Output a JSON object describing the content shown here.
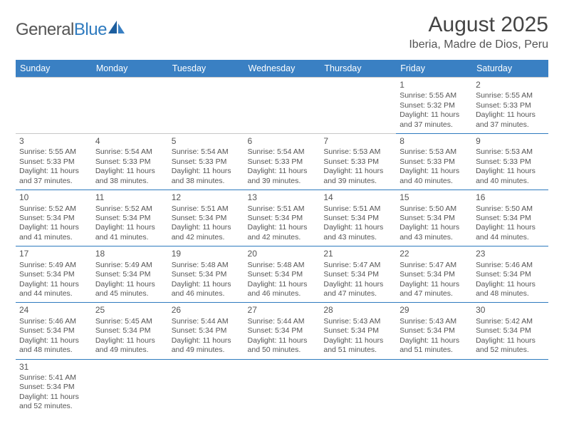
{
  "logo": {
    "text1": "General",
    "text2": "Blue"
  },
  "title": "August 2025",
  "location": "Iberia, Madre de Dios, Peru",
  "dayHeaders": [
    "Sunday",
    "Monday",
    "Tuesday",
    "Wednesday",
    "Thursday",
    "Friday",
    "Saturday"
  ],
  "colors": {
    "headerBg": "#3a80c3",
    "rowBorder": "#2f7bbf",
    "cellTopBorder": "#c8c8c8",
    "text": "#555"
  },
  "weeks": [
    [
      null,
      null,
      null,
      null,
      null,
      {
        "n": "1",
        "r": "Sunrise: 5:55 AM",
        "s": "Sunset: 5:32 PM",
        "d1": "Daylight: 11 hours",
        "d2": "and 37 minutes."
      },
      {
        "n": "2",
        "r": "Sunrise: 5:55 AM",
        "s": "Sunset: 5:33 PM",
        "d1": "Daylight: 11 hours",
        "d2": "and 37 minutes."
      }
    ],
    [
      {
        "n": "3",
        "r": "Sunrise: 5:55 AM",
        "s": "Sunset: 5:33 PM",
        "d1": "Daylight: 11 hours",
        "d2": "and 37 minutes."
      },
      {
        "n": "4",
        "r": "Sunrise: 5:54 AM",
        "s": "Sunset: 5:33 PM",
        "d1": "Daylight: 11 hours",
        "d2": "and 38 minutes."
      },
      {
        "n": "5",
        "r": "Sunrise: 5:54 AM",
        "s": "Sunset: 5:33 PM",
        "d1": "Daylight: 11 hours",
        "d2": "and 38 minutes."
      },
      {
        "n": "6",
        "r": "Sunrise: 5:54 AM",
        "s": "Sunset: 5:33 PM",
        "d1": "Daylight: 11 hours",
        "d2": "and 39 minutes."
      },
      {
        "n": "7",
        "r": "Sunrise: 5:53 AM",
        "s": "Sunset: 5:33 PM",
        "d1": "Daylight: 11 hours",
        "d2": "and 39 minutes."
      },
      {
        "n": "8",
        "r": "Sunrise: 5:53 AM",
        "s": "Sunset: 5:33 PM",
        "d1": "Daylight: 11 hours",
        "d2": "and 40 minutes."
      },
      {
        "n": "9",
        "r": "Sunrise: 5:53 AM",
        "s": "Sunset: 5:33 PM",
        "d1": "Daylight: 11 hours",
        "d2": "and 40 minutes."
      }
    ],
    [
      {
        "n": "10",
        "r": "Sunrise: 5:52 AM",
        "s": "Sunset: 5:34 PM",
        "d1": "Daylight: 11 hours",
        "d2": "and 41 minutes."
      },
      {
        "n": "11",
        "r": "Sunrise: 5:52 AM",
        "s": "Sunset: 5:34 PM",
        "d1": "Daylight: 11 hours",
        "d2": "and 41 minutes."
      },
      {
        "n": "12",
        "r": "Sunrise: 5:51 AM",
        "s": "Sunset: 5:34 PM",
        "d1": "Daylight: 11 hours",
        "d2": "and 42 minutes."
      },
      {
        "n": "13",
        "r": "Sunrise: 5:51 AM",
        "s": "Sunset: 5:34 PM",
        "d1": "Daylight: 11 hours",
        "d2": "and 42 minutes."
      },
      {
        "n": "14",
        "r": "Sunrise: 5:51 AM",
        "s": "Sunset: 5:34 PM",
        "d1": "Daylight: 11 hours",
        "d2": "and 43 minutes."
      },
      {
        "n": "15",
        "r": "Sunrise: 5:50 AM",
        "s": "Sunset: 5:34 PM",
        "d1": "Daylight: 11 hours",
        "d2": "and 43 minutes."
      },
      {
        "n": "16",
        "r": "Sunrise: 5:50 AM",
        "s": "Sunset: 5:34 PM",
        "d1": "Daylight: 11 hours",
        "d2": "and 44 minutes."
      }
    ],
    [
      {
        "n": "17",
        "r": "Sunrise: 5:49 AM",
        "s": "Sunset: 5:34 PM",
        "d1": "Daylight: 11 hours",
        "d2": "and 44 minutes."
      },
      {
        "n": "18",
        "r": "Sunrise: 5:49 AM",
        "s": "Sunset: 5:34 PM",
        "d1": "Daylight: 11 hours",
        "d2": "and 45 minutes."
      },
      {
        "n": "19",
        "r": "Sunrise: 5:48 AM",
        "s": "Sunset: 5:34 PM",
        "d1": "Daylight: 11 hours",
        "d2": "and 46 minutes."
      },
      {
        "n": "20",
        "r": "Sunrise: 5:48 AM",
        "s": "Sunset: 5:34 PM",
        "d1": "Daylight: 11 hours",
        "d2": "and 46 minutes."
      },
      {
        "n": "21",
        "r": "Sunrise: 5:47 AM",
        "s": "Sunset: 5:34 PM",
        "d1": "Daylight: 11 hours",
        "d2": "and 47 minutes."
      },
      {
        "n": "22",
        "r": "Sunrise: 5:47 AM",
        "s": "Sunset: 5:34 PM",
        "d1": "Daylight: 11 hours",
        "d2": "and 47 minutes."
      },
      {
        "n": "23",
        "r": "Sunrise: 5:46 AM",
        "s": "Sunset: 5:34 PM",
        "d1": "Daylight: 11 hours",
        "d2": "and 48 minutes."
      }
    ],
    [
      {
        "n": "24",
        "r": "Sunrise: 5:46 AM",
        "s": "Sunset: 5:34 PM",
        "d1": "Daylight: 11 hours",
        "d2": "and 48 minutes."
      },
      {
        "n": "25",
        "r": "Sunrise: 5:45 AM",
        "s": "Sunset: 5:34 PM",
        "d1": "Daylight: 11 hours",
        "d2": "and 49 minutes."
      },
      {
        "n": "26",
        "r": "Sunrise: 5:44 AM",
        "s": "Sunset: 5:34 PM",
        "d1": "Daylight: 11 hours",
        "d2": "and 49 minutes."
      },
      {
        "n": "27",
        "r": "Sunrise: 5:44 AM",
        "s": "Sunset: 5:34 PM",
        "d1": "Daylight: 11 hours",
        "d2": "and 50 minutes."
      },
      {
        "n": "28",
        "r": "Sunrise: 5:43 AM",
        "s": "Sunset: 5:34 PM",
        "d1": "Daylight: 11 hours",
        "d2": "and 51 minutes."
      },
      {
        "n": "29",
        "r": "Sunrise: 5:43 AM",
        "s": "Sunset: 5:34 PM",
        "d1": "Daylight: 11 hours",
        "d2": "and 51 minutes."
      },
      {
        "n": "30",
        "r": "Sunrise: 5:42 AM",
        "s": "Sunset: 5:34 PM",
        "d1": "Daylight: 11 hours",
        "d2": "and 52 minutes."
      }
    ],
    [
      {
        "n": "31",
        "r": "Sunrise: 5:41 AM",
        "s": "Sunset: 5:34 PM",
        "d1": "Daylight: 11 hours",
        "d2": "and 52 minutes."
      },
      null,
      null,
      null,
      null,
      null,
      null
    ]
  ]
}
